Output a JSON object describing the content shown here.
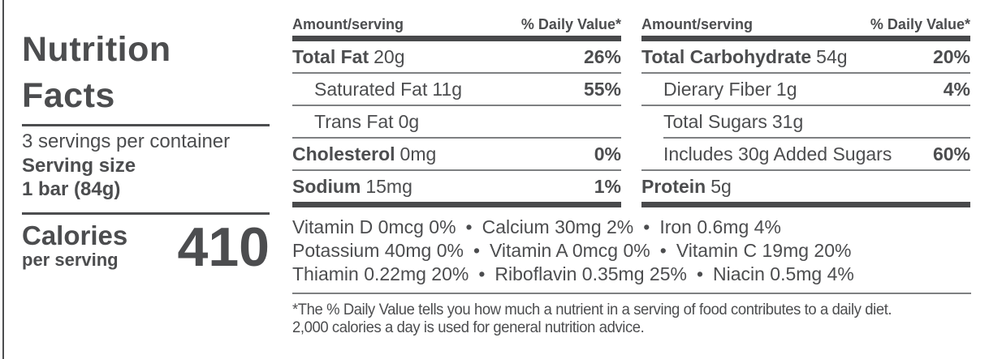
{
  "colors": {
    "text": "#4c4d4f",
    "bar": "#48494b",
    "hairline": "#7e8082"
  },
  "bullet": "•",
  "title": {
    "line1": "Nutrition",
    "line2": "Facts"
  },
  "serving": {
    "per_container": "3 servings per container",
    "size_label": "Serving size",
    "size_value": "1 bar (84g)"
  },
  "calories": {
    "label": "Calories",
    "sublabel": "per serving",
    "value": "410"
  },
  "columns": [
    {
      "header_amount": "Amount/serving",
      "header_dv": "% Daily Value*",
      "rows": [
        {
          "name": "Total Fat",
          "amount": "20g",
          "dv": "26%"
        },
        {
          "name": "Saturated Fat",
          "amount": "11g",
          "dv": "55%"
        },
        {
          "name": "Trans Fat",
          "amount": "0g",
          "dv": ""
        },
        {
          "name": "Cholesterol",
          "amount": "0mg",
          "dv": "0%"
        },
        {
          "name": "Sodium",
          "amount": "15mg",
          "dv": "1%"
        }
      ]
    },
    {
      "header_amount": "Amount/serving",
      "header_dv": "% Daily Value*",
      "rows": [
        {
          "name": "Total Carbohydrate",
          "amount": "54g",
          "dv": "20%"
        },
        {
          "name": "Dierary Fiber",
          "amount": "1g",
          "dv": "4%"
        },
        {
          "name": "Total Sugars",
          "amount": "31g",
          "dv": ""
        },
        {
          "name": "Includes 30g Added Sugars",
          "amount": "",
          "dv": "60%"
        },
        {
          "name": "Protein",
          "amount": "5g",
          "dv": ""
        }
      ]
    }
  ],
  "micronutrients": [
    [
      "Vitamin D 0mcg 0%",
      "Calcium 30mg 2%",
      "Iron 0.6mg 4%"
    ],
    [
      "Potassium 40mg 0%",
      "Vitamin A 0mcg 0%",
      "Vitamin C 19mg 20%"
    ],
    [
      "Thiamin 0.22mg 20%",
      "Riboflavin 0.35mg 25%",
      "Niacin 0.5mg 4%"
    ]
  ],
  "footnote": {
    "line1": "*The % Daily Value tells you how much a nutrient in a serving of food contributes to a daily diet.",
    "line2": "2,000 calories a day is used for general nutrition advice."
  }
}
